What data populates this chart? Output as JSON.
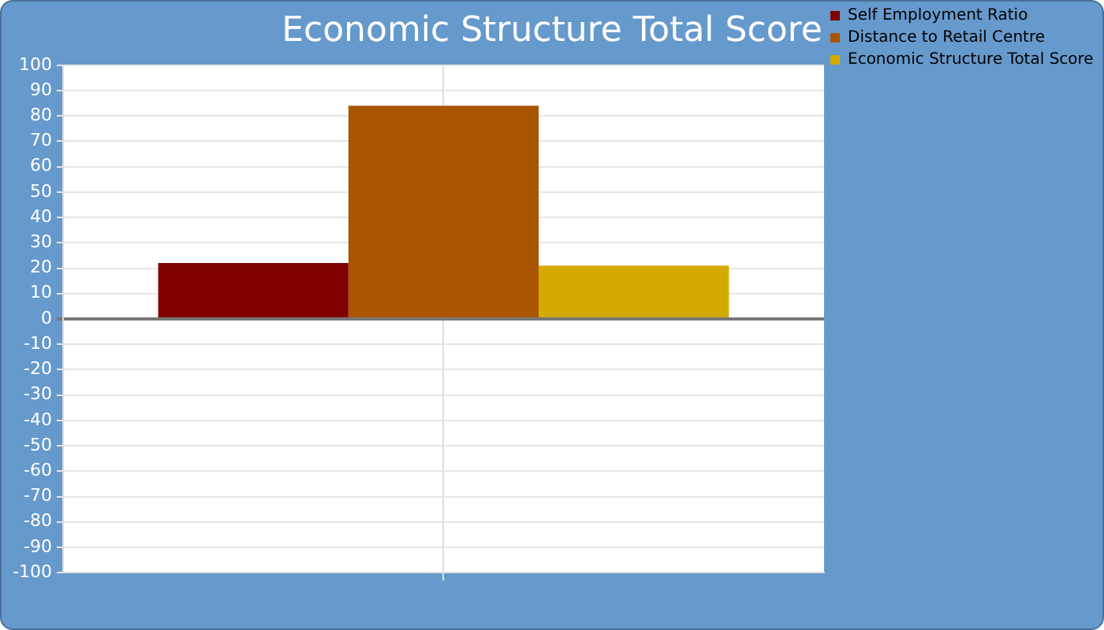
{
  "chart_data": {
    "type": "bar",
    "title": "Economic Structure Total Score",
    "categories": [
      null
    ],
    "series": [
      {
        "name": "Self Employment Ratio",
        "color": "#800000",
        "values": [
          22
        ]
      },
      {
        "name": "Distance to Retail Centre",
        "color": "#aa5500",
        "values": [
          84
        ]
      },
      {
        "name": "Economic Structure Total Score",
        "color": "#d4aa00",
        "values": [
          21
        ]
      }
    ],
    "ylim": [
      -100,
      100
    ],
    "yticks": [
      -100,
      -90,
      -80,
      -70,
      -60,
      -50,
      -40,
      -30,
      -20,
      -10,
      0,
      10,
      20,
      30,
      40,
      50,
      60,
      70,
      80,
      90,
      100
    ],
    "grid": true,
    "legend": "top right"
  }
}
